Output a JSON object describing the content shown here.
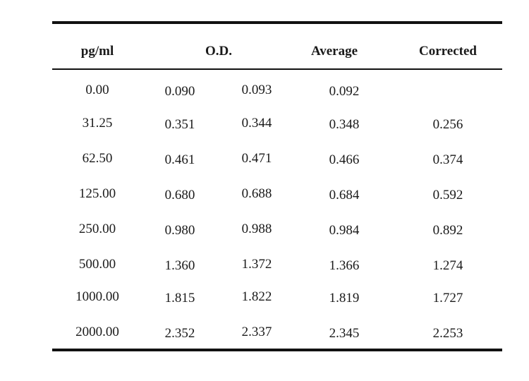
{
  "table": {
    "headers": {
      "conc": "pg/ml",
      "od": "O.D.",
      "average": "Average",
      "corrected": "Corrected"
    },
    "rows": [
      {
        "conc": "0.00",
        "od1": "0.090",
        "od2": "0.093",
        "average": "0.092",
        "corrected": ""
      },
      {
        "conc": "31.25",
        "od1": "0.351",
        "od2": "0.344",
        "average": "0.348",
        "corrected": "0.256"
      },
      {
        "conc": "62.50",
        "od1": "0.461",
        "od2": "0.471",
        "average": "0.466",
        "corrected": "0.374"
      },
      {
        "conc": "125.00",
        "od1": "0.680",
        "od2": "0.688",
        "average": "0.684",
        "corrected": "0.592"
      },
      {
        "conc": "250.00",
        "od1": "0.980",
        "od2": "0.988",
        "average": "0.984",
        "corrected": "0.892"
      },
      {
        "conc": "500.00",
        "od1": "1.360",
        "od2": "1.372",
        "average": "1.366",
        "corrected": "1.274"
      },
      {
        "conc": "1000.00",
        "od1": "1.815",
        "od2": "1.822",
        "average": "1.819",
        "corrected": "1.727"
      },
      {
        "conc": "2000.00",
        "od1": "2.352",
        "od2": "2.337",
        "average": "2.345",
        "corrected": "2.253"
      }
    ]
  }
}
